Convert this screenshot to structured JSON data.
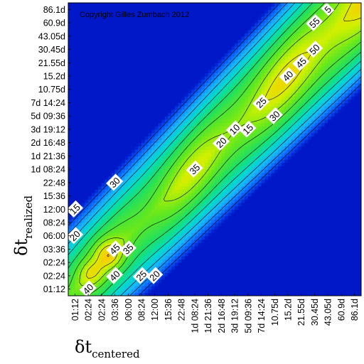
{
  "chart_data": {
    "type": "heatmap",
    "title": "",
    "copyright": "Copyright Gilles Zumbach 2012",
    "xlabel": {
      "symbol": "δt",
      "subscript": "centered"
    },
    "ylabel": {
      "symbol": "δt",
      "subscript": "realized"
    },
    "x_ticks": [
      "01:12",
      "02:24",
      "02:24",
      "03:36",
      "06:00",
      "08:24",
      "12:00",
      "15:36",
      "22:48",
      "1d 08:24",
      "1d 21:36",
      "2d 16:48",
      "3d 19:12",
      "5d 09:36",
      "7d 14:24",
      "10.75d",
      "15.2d",
      "21.55d",
      "30.45d",
      "43.05d",
      "60.9d",
      "86.1d"
    ],
    "y_ticks": [
      "01:12",
      "02:24",
      "02:24",
      "03:36",
      "06:00",
      "08:24",
      "12:00",
      "15:36",
      "22:48",
      "1d 08:24",
      "1d 21:36",
      "2d 16:48",
      "3d 19:12",
      "5d 09:36",
      "7d 14:24",
      "10.75d",
      "15.2d",
      "21.55d",
      "30.45d",
      "43.05d",
      "60.9d",
      "86.1d"
    ],
    "colorscale": [
      "#0018c8",
      "#0a60ff",
      "#18b4ff",
      "#00dcc8",
      "#20e060",
      "#64e81e",
      "#d2f000",
      "#ffc800",
      "#ff7800",
      "#ff4000"
    ],
    "contour_levels": [
      5,
      10,
      15,
      20,
      25,
      30,
      35,
      40,
      45,
      50,
      55
    ],
    "contour_labels": [
      {
        "text": "5",
        "x": "43.05d",
        "y": "86.1d"
      },
      {
        "text": "10",
        "x": "3d 19:12",
        "y": "3d 19:12"
      },
      {
        "text": "15",
        "x": "15.36",
        "y": "12:00"
      },
      {
        "text": "15",
        "x": "5d 09:36",
        "y": "3d 19:12"
      },
      {
        "text": "20",
        "x": "12:00",
        "y": "02:24"
      },
      {
        "text": "20",
        "x": "01:12",
        "y": "06:00"
      },
      {
        "text": "20",
        "x": "2d 16:48",
        "y": "2d 16:48"
      },
      {
        "text": "25",
        "x": "08:24",
        "y": "02:24"
      },
      {
        "text": "25",
        "x": "7d 14:24",
        "y": "7d 14:24"
      },
      {
        "text": "30",
        "x": "03:36",
        "y": "22:48"
      },
      {
        "text": "30",
        "x": "10.75d",
        "y": "5d 09:36"
      },
      {
        "text": "35",
        "x": "06:00",
        "y": "03:36"
      },
      {
        "text": "35",
        "x": "1d 08:24",
        "y": "1d 08:24"
      },
      {
        "text": "40",
        "x": "15.2d",
        "y": "15.2d"
      },
      {
        "text": "40",
        "x": "02:24",
        "y": "01:12"
      },
      {
        "text": "40",
        "x": "03:36",
        "y": "02:24"
      },
      {
        "text": "45",
        "x": "03:36",
        "y": "03:36"
      },
      {
        "text": "45",
        "x": "21.55d",
        "y": "21.55d"
      },
      {
        "text": "50",
        "x": "30.45d",
        "y": "30.45d"
      },
      {
        "text": "55",
        "x": "30.45d",
        "y": "60.9d"
      }
    ]
  }
}
